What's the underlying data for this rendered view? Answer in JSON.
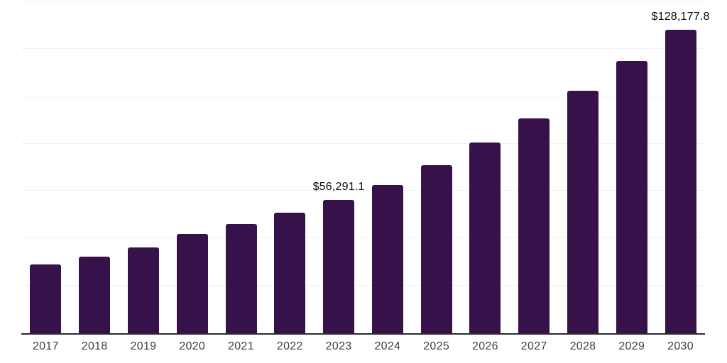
{
  "chart_data": {
    "type": "bar",
    "title": "",
    "xlabel": "",
    "ylabel": "",
    "categories": [
      "2017",
      "2018",
      "2019",
      "2020",
      "2021",
      "2022",
      "2023",
      "2024",
      "2025",
      "2026",
      "2027",
      "2028",
      "2029",
      "2030"
    ],
    "values": [
      29100,
      32200,
      36200,
      41900,
      46100,
      50900,
      56291.1,
      62600,
      70800,
      80400,
      90600,
      102400,
      114900,
      128177.8
    ],
    "data_labels": {
      "2023": "$56,291.1",
      "2030": "$128,177.8"
    },
    "ylim": [
      0,
      140000
    ],
    "gridline_step": 20000,
    "grid": "horizontal-only",
    "legend": "none",
    "y_axis_tick_labels": "none",
    "colors": {
      "bar": "#36114a",
      "gridline": "#f1f1f1",
      "axis_line": "#2b2b2b",
      "tick_label": "#3f3f3f",
      "value_label": "#0a0a0a",
      "background": "#ffffff"
    }
  }
}
